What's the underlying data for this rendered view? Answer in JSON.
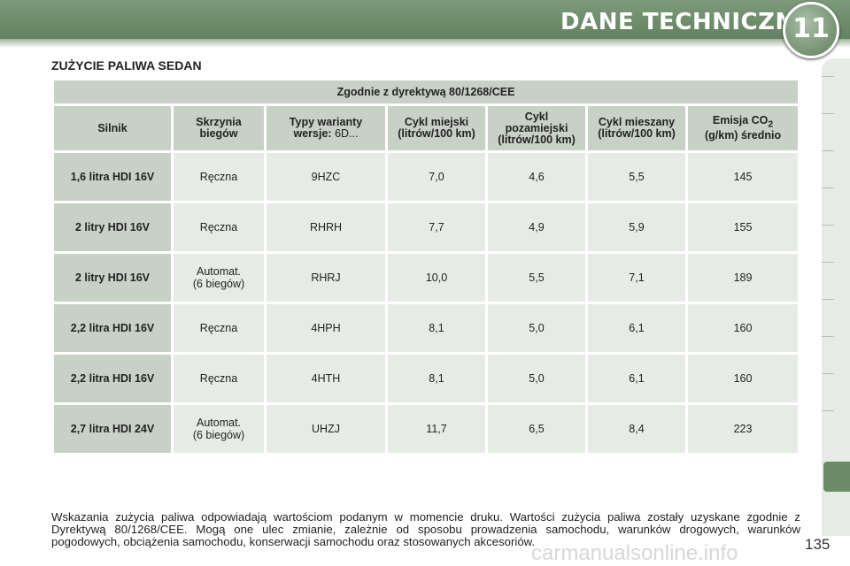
{
  "header": {
    "section_title": "DANE TECHNICZNE",
    "chapter_number": "11"
  },
  "page": {
    "heading": "ZUŻYCIE PALIWA SEDAN",
    "number": "135"
  },
  "table": {
    "directive": "Zgodnie z dyrektywą 80/1268/CEE",
    "columns": {
      "engine": "Silnik",
      "gearbox_1": "Skrzynia",
      "gearbox_2": "biegów",
      "types_1": "Typy warianty",
      "types_2_bold": "wersje:",
      "types_2_value": "6D...",
      "urban_1": "Cykl miejski",
      "urban_2": "(litrów/100 km)",
      "extra_1": "Cykl",
      "extra_2": "pozamiejski",
      "extra_3": "(litrów/100 km)",
      "mixed_1": "Cykl mieszany",
      "mixed_2": "(litrów/100 km)",
      "co2_1": "Emisja CO",
      "co2_sub": "2",
      "co2_2": "(g/km) średnio"
    },
    "rows": [
      {
        "engine": "1,6 litra HDI 16V",
        "gearbox": "Ręczna",
        "type": "9HZC",
        "urban": "7,0",
        "extra": "4,6",
        "mixed": "5,5",
        "co2": "145"
      },
      {
        "engine": "2 litry HDI 16V",
        "gearbox": "Ręczna",
        "type": "RHRH",
        "urban": "7,7",
        "extra": "4,9",
        "mixed": "5,9",
        "co2": "155"
      },
      {
        "engine": "2 litry HDI 16V",
        "gearbox_1": "Automat.",
        "gearbox_2": "(6 biegów)",
        "type": "RHRJ",
        "urban": "10,0",
        "extra": "5,5",
        "mixed": "7,1",
        "co2": "189"
      },
      {
        "engine": "2,2 litra HDI 16V",
        "gearbox": "Ręczna",
        "type": "4HPH",
        "urban": "8,1",
        "extra": "5,0",
        "mixed": "6,1",
        "co2": "160"
      },
      {
        "engine": "2,2 litra HDI 16V",
        "gearbox": "Ręczna",
        "type": "4HTH",
        "urban": "8,1",
        "extra": "5,0",
        "mixed": "6,1",
        "co2": "160"
      },
      {
        "engine": "2,7 litra HDI 24V",
        "gearbox_1": "Automat.",
        "gearbox_2": "(6 biegów)",
        "type": "UHZJ",
        "urban": "11,7",
        "extra": "6,5",
        "mixed": "8,4",
        "co2": "223"
      }
    ]
  },
  "note": "Wskazania zużycia paliwa odpowiadają wartościom podanym w momencie druku. Wartości zużycia paliwa zostały uzyskane zgodnie z Dyrektywą 80/1268/CEE. Mogą one ulec zmianie, zależnie od sposobu prowadzenia samochodu, warunków drogowych, warunków pogodowych, obciążenia samochodu, konserwacji samochodu oraz stosowanych akcesoriów.",
  "watermark": "carmanualsonline.info",
  "colors": {
    "header_green": "#6b8a68",
    "cell_header": "#c7d1c5",
    "cell_data": "#e7ebe6"
  }
}
